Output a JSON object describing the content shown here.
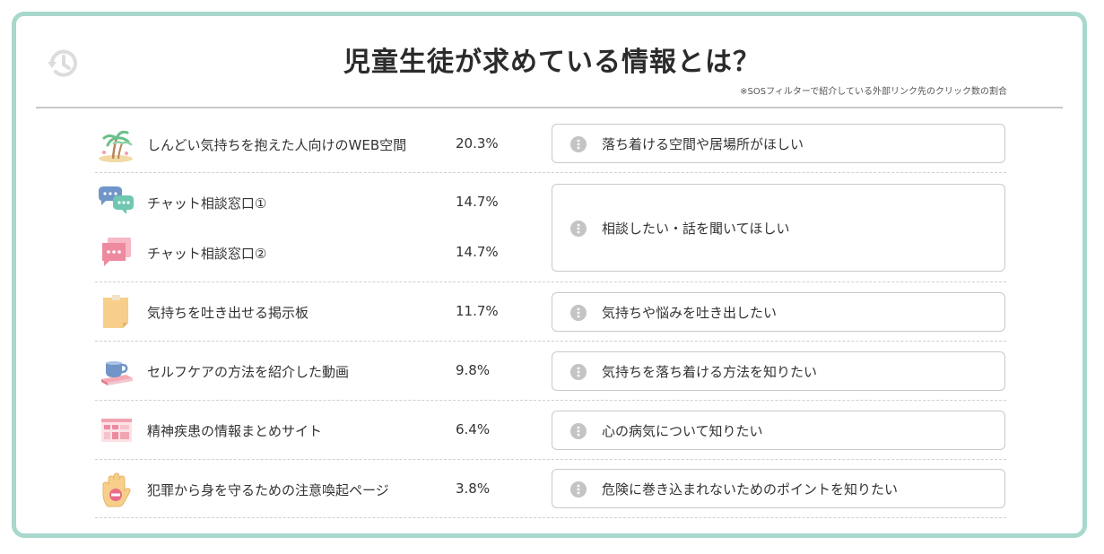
{
  "title": "児童生徒が求めている情報とは？",
  "note": "※SOSフィルターで紹介している外部リンク先のクリック数の割合",
  "rows": [
    {
      "icon": "palm-island-icon",
      "name": "しんどい気持ちを抱えた人向けのWEB空間",
      "percent": "20.3%"
    },
    {
      "icon": "chat-bubbles-icon",
      "name": "チャット相談窓口①",
      "percent": "14.7%"
    },
    {
      "icon": "chat-card-icon",
      "name": "チャット相談窓口②",
      "percent": "14.7%"
    },
    {
      "icon": "sticky-note-icon",
      "name": "気持ちを吐き出せる掲示板",
      "percent": "11.7%"
    },
    {
      "icon": "teacup-book-icon",
      "name": "セルフケアの方法を紹介した動画",
      "percent": "9.8%"
    },
    {
      "icon": "website-grid-icon",
      "name": "精神疾患の情報まとめサイト",
      "percent": "6.4%"
    },
    {
      "icon": "stop-hand-icon",
      "name": "犯罪から身を守るための注意喚起ページ",
      "percent": "3.8%"
    }
  ],
  "needs": [
    "落ち着ける空間や居場所がほしい",
    "相談したい・話を聞いてほしい",
    "気持ちや悩みを吐き出したい",
    "気持ちを落ち着ける方法を知りたい",
    "心の病気について知りたい",
    "危険に巻き込まれないためのポイントを知りたい"
  ],
  "colors": {
    "frame": "#a8d8cc",
    "divider": "#c8c8c8",
    "needIcon": "#c4c4c4"
  }
}
